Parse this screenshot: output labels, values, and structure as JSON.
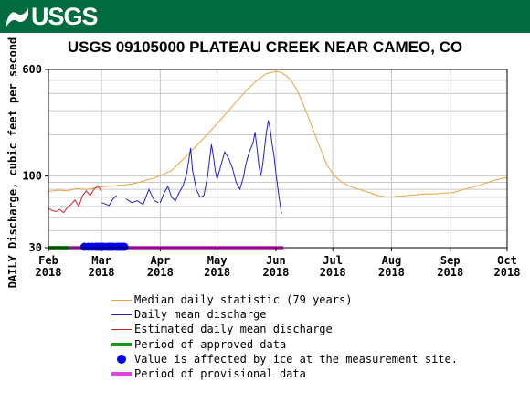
{
  "header": {
    "logo_text": "USGS"
  },
  "chart_data": {
    "type": "line",
    "title": "USGS 09105000 PLATEAU CREEK NEAR CAMEO, CO",
    "ylabel": "DAILY Discharge, cubic feet per second",
    "xlabel": "",
    "y_scale": "log",
    "ylim": [
      30,
      600
    ],
    "y_ticks": [
      30,
      100,
      600
    ],
    "x_range": [
      "2018-02-01",
      "2018-10-01"
    ],
    "x_ticks": [
      {
        "date": "2018-02-01",
        "month": "Feb",
        "year": "2018"
      },
      {
        "date": "2018-03-01",
        "month": "Mar",
        "year": "2018"
      },
      {
        "date": "2018-04-01",
        "month": "Apr",
        "year": "2018"
      },
      {
        "date": "2018-05-01",
        "month": "May",
        "year": "2018"
      },
      {
        "date": "2018-06-01",
        "month": "Jun",
        "year": "2018"
      },
      {
        "date": "2018-07-01",
        "month": "Jul",
        "year": "2018"
      },
      {
        "date": "2018-08-01",
        "month": "Aug",
        "year": "2018"
      },
      {
        "date": "2018-09-01",
        "month": "Sep",
        "year": "2018"
      },
      {
        "date": "2018-10-01",
        "month": "Oct",
        "year": "2018"
      }
    ],
    "grid": true,
    "series": [
      {
        "name": "Median daily statistic (79 years)",
        "color": "#e8a33c",
        "points": [
          [
            "2018-02-01",
            77
          ],
          [
            "2018-02-06",
            79
          ],
          [
            "2018-02-11",
            78
          ],
          [
            "2018-02-16",
            81
          ],
          [
            "2018-02-21",
            80
          ],
          [
            "2018-02-26",
            82
          ],
          [
            "2018-03-03",
            84
          ],
          [
            "2018-03-08",
            85
          ],
          [
            "2018-03-13",
            86
          ],
          [
            "2018-03-18",
            88
          ],
          [
            "2018-03-23",
            92
          ],
          [
            "2018-03-28",
            96
          ],
          [
            "2018-04-02",
            102
          ],
          [
            "2018-04-07",
            110
          ],
          [
            "2018-04-12",
            128
          ],
          [
            "2018-04-17",
            150
          ],
          [
            "2018-04-22",
            178
          ],
          [
            "2018-04-27",
            210
          ],
          [
            "2018-05-02",
            250
          ],
          [
            "2018-05-07",
            300
          ],
          [
            "2018-05-12",
            360
          ],
          [
            "2018-05-17",
            430
          ],
          [
            "2018-05-22",
            500
          ],
          [
            "2018-05-27",
            560
          ],
          [
            "2018-06-01",
            580
          ],
          [
            "2018-06-04",
            570
          ],
          [
            "2018-06-08",
            520
          ],
          [
            "2018-06-12",
            430
          ],
          [
            "2018-06-16",
            320
          ],
          [
            "2018-06-20",
            230
          ],
          [
            "2018-06-24",
            165
          ],
          [
            "2018-06-28",
            120
          ],
          [
            "2018-07-02",
            100
          ],
          [
            "2018-07-06",
            90
          ],
          [
            "2018-07-10",
            84
          ],
          [
            "2018-07-15",
            80
          ],
          [
            "2018-07-20",
            76
          ],
          [
            "2018-07-25",
            72
          ],
          [
            "2018-07-30",
            70
          ],
          [
            "2018-08-04",
            71
          ],
          [
            "2018-08-09",
            72
          ],
          [
            "2018-08-14",
            73
          ],
          [
            "2018-08-19",
            74
          ],
          [
            "2018-08-24",
            74
          ],
          [
            "2018-08-29",
            75
          ],
          [
            "2018-09-03",
            76
          ],
          [
            "2018-09-08",
            80
          ],
          [
            "2018-09-13",
            83
          ],
          [
            "2018-09-18",
            87
          ],
          [
            "2018-09-23",
            92
          ],
          [
            "2018-09-28",
            96
          ],
          [
            "2018-10-01",
            97
          ]
        ]
      },
      {
        "name": "Daily mean discharge",
        "color": "#2222bb",
        "segments": [
          [
            [
              "2018-03-01",
              64
            ],
            [
              "2018-03-05",
              61
            ],
            [
              "2018-03-07",
              68
            ],
            [
              "2018-03-09",
              72
            ]
          ],
          [
            [
              "2018-03-14",
              68
            ],
            [
              "2018-03-17",
              64
            ],
            [
              "2018-03-20",
              66
            ],
            [
              "2018-03-23",
              62
            ],
            [
              "2018-03-26",
              80
            ],
            [
              "2018-03-28",
              70
            ],
            [
              "2018-03-29",
              66
            ],
            [
              "2018-03-31",
              64
            ]
          ],
          [
            [
              "2018-04-01",
              64
            ],
            [
              "2018-04-03",
              75
            ],
            [
              "2018-04-05",
              84
            ],
            [
              "2018-04-07",
              70
            ],
            [
              "2018-04-09",
              66
            ],
            [
              "2018-04-11",
              76
            ],
            [
              "2018-04-13",
              85
            ],
            [
              "2018-04-15",
              105
            ],
            [
              "2018-04-17",
              160
            ],
            [
              "2018-04-18",
              110
            ],
            [
              "2018-04-20",
              80
            ],
            [
              "2018-04-22",
              70
            ],
            [
              "2018-04-24",
              72
            ],
            [
              "2018-04-26",
              100
            ],
            [
              "2018-04-28",
              170
            ],
            [
              "2018-04-29",
              140
            ],
            [
              "2018-04-30",
              110
            ],
            [
              "2018-05-01",
              95
            ],
            [
              "2018-05-03",
              120
            ],
            [
              "2018-05-05",
              150
            ],
            [
              "2018-05-07",
              135
            ],
            [
              "2018-05-09",
              115
            ],
            [
              "2018-05-11",
              90
            ],
            [
              "2018-05-13",
              80
            ],
            [
              "2018-05-15",
              100
            ],
            [
              "2018-05-16",
              120
            ],
            [
              "2018-05-18",
              150
            ],
            [
              "2018-05-20",
              175
            ],
            [
              "2018-05-21",
              210
            ],
            [
              "2018-05-22",
              160
            ],
            [
              "2018-05-23",
              120
            ],
            [
              "2018-05-24",
              100
            ],
            [
              "2018-05-25",
              120
            ],
            [
              "2018-05-26",
              160
            ],
            [
              "2018-05-27",
              210
            ],
            [
              "2018-05-28",
              255
            ],
            [
              "2018-05-29",
              220
            ],
            [
              "2018-05-30",
              170
            ],
            [
              "2018-05-31",
              140
            ],
            [
              "2018-06-01",
              105
            ],
            [
              "2018-06-02",
              82
            ],
            [
              "2018-06-03",
              65
            ],
            [
              "2018-06-04",
              53
            ]
          ]
        ]
      },
      {
        "name": "Estimated daily mean discharge",
        "color": "#cc2222",
        "points": [
          [
            "2018-02-01",
            58
          ],
          [
            "2018-02-03",
            56
          ],
          [
            "2018-02-05",
            55
          ],
          [
            "2018-02-07",
            57
          ],
          [
            "2018-02-09",
            54
          ],
          [
            "2018-02-11",
            59
          ],
          [
            "2018-02-13",
            62
          ],
          [
            "2018-02-15",
            67
          ],
          [
            "2018-02-17",
            60
          ],
          [
            "2018-02-19",
            72
          ],
          [
            "2018-02-21",
            78
          ],
          [
            "2018-02-23",
            72
          ],
          [
            "2018-02-25",
            80
          ],
          [
            "2018-02-27",
            85
          ],
          [
            "2018-03-01",
            78
          ]
        ]
      }
    ],
    "periods": [
      {
        "name": "Period of approved data",
        "color": "#119911",
        "start": "2018-02-01",
        "end": "2018-02-12"
      },
      {
        "name": "Period of provisional data",
        "color": "#dd44dd",
        "start": "2018-02-12",
        "end": "2018-06-05"
      }
    ],
    "ice_markers": {
      "name": "Value is affected by ice at the measurement site.",
      "color": "#0000ee",
      "dates": [
        "2018-02-20",
        "2018-02-22",
        "2018-02-24",
        "2018-02-26",
        "2018-02-27",
        "2018-02-28",
        "2018-03-01",
        "2018-03-02",
        "2018-03-04",
        "2018-03-05",
        "2018-03-06",
        "2018-03-07",
        "2018-03-09",
        "2018-03-10",
        "2018-03-11",
        "2018-03-12",
        "2018-03-13"
      ]
    },
    "legend": [
      {
        "label": "Median daily statistic (79 years)",
        "kind": "line",
        "color": "#e8a33c"
      },
      {
        "label": "Daily mean discharge",
        "kind": "line",
        "color": "#2222bb"
      },
      {
        "label": "Estimated daily mean discharge",
        "kind": "line",
        "color": "#cc2222"
      },
      {
        "label": "Period of approved data",
        "kind": "bar",
        "color": "#119911"
      },
      {
        "label": "Value is affected by ice at the measurement site.",
        "kind": "dot",
        "color": "#0000ee"
      },
      {
        "label": "Period of provisional data",
        "kind": "bar",
        "color": "#dd44dd"
      }
    ],
    "legend_position": "bottom"
  }
}
